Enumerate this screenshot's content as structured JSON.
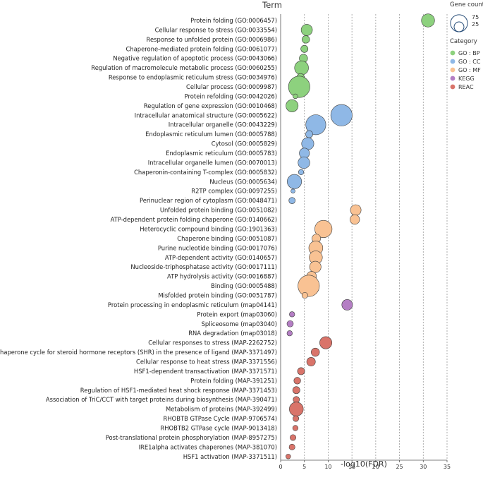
{
  "chart_data": {
    "type": "scatter",
    "title": "Term",
    "xlabel": "-log10(FDR)",
    "xlim": [
      0,
      35
    ],
    "xticks": [
      0,
      5,
      10,
      15,
      20,
      25,
      30,
      35
    ],
    "size_legend": {
      "title": "Gene count",
      "values": [
        75,
        25
      ]
    },
    "category_legend": {
      "title": "Category",
      "items": [
        {
          "key": "BP",
          "label": "GO : BP",
          "color": "#8dd17e"
        },
        {
          "key": "CC",
          "label": "GO : CC",
          "color": "#8fb8e6"
        },
        {
          "key": "MF",
          "label": "GO : MF",
          "color": "#f9c293"
        },
        {
          "key": "KEGG",
          "label": "KEGG",
          "color": "#b47ec4"
        },
        {
          "key": "REAC",
          "label": "REAC",
          "color": "#d9746a"
        }
      ]
    },
    "points": [
      {
        "term": "Protein folding (GO:0006457)",
        "category": "BP",
        "x": 31.0,
        "count": 30
      },
      {
        "term": "Cellular response to stress (GO:0033554)",
        "category": "BP",
        "x": 5.5,
        "count": 22
      },
      {
        "term": "Response to unfolded protein (GO:0006986)",
        "category": "BP",
        "x": 5.3,
        "count": 10
      },
      {
        "term": "Chaperone-mediated protein folding (GO:0061077)",
        "category": "BP",
        "x": 5.0,
        "count": 9
      },
      {
        "term": "Negative regulation of apoptotic process (GO:0043066)",
        "category": "BP",
        "x": 4.8,
        "count": 12
      },
      {
        "term": "Regulation of macromolecule metabolic process (GO:0060255)",
        "category": "BP",
        "x": 4.4,
        "count": 34
      },
      {
        "term": "Response to endoplasmic reticulum stress (GO:0034976)",
        "category": "BP",
        "x": 4.2,
        "count": 10
      },
      {
        "term": "Cellular process (GO:0009987)",
        "category": "BP",
        "x": 3.9,
        "count": 80
      },
      {
        "term": "Protein refolding (GO:0042026)",
        "category": "BP",
        "x": 3.1,
        "count": 4
      },
      {
        "term": "Regulation of gene expression (GO:0010468)",
        "category": "BP",
        "x": 2.4,
        "count": 26
      },
      {
        "term": "Intracellular anatomical structure (GO:0005622)",
        "category": "CC",
        "x": 12.8,
        "count": 80
      },
      {
        "term": "Intracellular organelle (GO:0043229)",
        "category": "CC",
        "x": 7.4,
        "count": 70
      },
      {
        "term": "Endoplasmic reticulum lumen (GO:0005788)",
        "category": "CC",
        "x": 6.0,
        "count": 9
      },
      {
        "term": "Cytosol (GO:0005829)",
        "category": "CC",
        "x": 5.7,
        "count": 26
      },
      {
        "term": "Endoplasmic reticulum (GO:0005783)",
        "category": "CC",
        "x": 5.0,
        "count": 18
      },
      {
        "term": "Intracellular organelle lumen (GO:0070013)",
        "category": "CC",
        "x": 4.9,
        "count": 24
      },
      {
        "term": "Chaperonin-containing T-complex (GO:0005832)",
        "category": "CC",
        "x": 4.3,
        "count": 5
      },
      {
        "term": "Nucleus (GO:0005634)",
        "category": "CC",
        "x": 2.9,
        "count": 36
      },
      {
        "term": "R2TP complex (GO:0097255)",
        "category": "CC",
        "x": 2.6,
        "count": 3
      },
      {
        "term": "Perinuclear region of cytoplasm (GO:0048471)",
        "category": "CC",
        "x": 2.4,
        "count": 7
      },
      {
        "term": "Unfolded protein binding (GO:0051082)",
        "category": "MF",
        "x": 15.8,
        "count": 20
      },
      {
        "term": "ATP-dependent protein folding chaperone (GO:0140662)",
        "category": "MF",
        "x": 15.6,
        "count": 16
      },
      {
        "term": "Heterocyclic compound binding (GO:1901363)",
        "category": "MF",
        "x": 9.0,
        "count": 52
      },
      {
        "term": "Chaperone binding (GO:0051087)",
        "category": "MF",
        "x": 7.5,
        "count": 13
      },
      {
        "term": "Purine nucleotide binding (GO:0017076)",
        "category": "MF",
        "x": 7.4,
        "count": 34
      },
      {
        "term": "ATP-dependent activity (GO:0140657)",
        "category": "MF",
        "x": 7.4,
        "count": 30
      },
      {
        "term": "Nucleoside-triphosphatase activity (GO:0017111)",
        "category": "MF",
        "x": 7.3,
        "count": 23
      },
      {
        "term": "ATP hydrolysis activity (GO:0016887)",
        "category": "MF",
        "x": 6.5,
        "count": 17
      },
      {
        "term": "Binding (GO:0005488)",
        "category": "MF",
        "x": 5.9,
        "count": 80
      },
      {
        "term": "Misfolded protein binding (GO:0051787)",
        "category": "MF",
        "x": 5.1,
        "count": 6
      },
      {
        "term": "Protein processing in endoplasmic reticulum (map04141)",
        "category": "KEGG",
        "x": 14.0,
        "count": 20
      },
      {
        "term": "Protein export (map03060)",
        "category": "KEGG",
        "x": 2.4,
        "count": 5
      },
      {
        "term": "Spliceosome (map03040)",
        "category": "KEGG",
        "x": 2.0,
        "count": 7
      },
      {
        "term": "RNA degradation (map03018)",
        "category": "KEGG",
        "x": 1.9,
        "count": 5
      },
      {
        "term": "Cellular responses to stress (MAP-2262752)",
        "category": "REAC",
        "x": 9.5,
        "count": 26
      },
      {
        "term": "HSP90 chaperone cycle for steroid hormone receptors (SHR) in the presence of ligand (MAP-3371497)",
        "category": "REAC",
        "x": 7.3,
        "count": 12
      },
      {
        "term": "Cellular response to heat stress (MAP-3371556)",
        "category": "REAC",
        "x": 6.4,
        "count": 13
      },
      {
        "term": "HSF1-dependent transactivation (MAP-3371571)",
        "category": "REAC",
        "x": 4.3,
        "count": 9
      },
      {
        "term": "Protein folding (MAP-391251)",
        "category": "REAC",
        "x": 3.5,
        "count": 8
      },
      {
        "term": "Regulation of HSF1-mediated heat shock response (MAP-3371453)",
        "category": "REAC",
        "x": 3.3,
        "count": 9
      },
      {
        "term": "Association of TriC/CCT with target proteins during biosynthesis (MAP-390471)",
        "category": "REAC",
        "x": 3.3,
        "count": 7
      },
      {
        "term": "Metabolism of proteins (MAP-392499)",
        "category": "REAC",
        "x": 3.3,
        "count": 34
      },
      {
        "term": "RHOBTB GTPase Cycle (MAP-9706574)",
        "category": "REAC",
        "x": 3.2,
        "count": 6
      },
      {
        "term": "RHOBTB2 GTPase cycle (MAP-9013418)",
        "category": "REAC",
        "x": 3.1,
        "count": 5
      },
      {
        "term": "Post-translational protein phosphorylation (MAP-8957275)",
        "category": "REAC",
        "x": 2.6,
        "count": 6
      },
      {
        "term": "IRE1alpha activates chaperones (MAP-381070)",
        "category": "REAC",
        "x": 2.4,
        "count": 6
      },
      {
        "term": "HSF1 activation (MAP-3371511)",
        "category": "REAC",
        "x": 1.6,
        "count": 4
      }
    ]
  }
}
